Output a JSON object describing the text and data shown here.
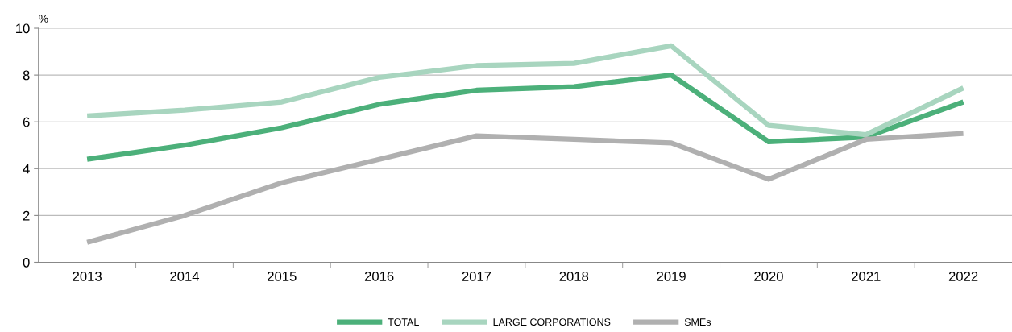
{
  "chart_data": {
    "type": "line",
    "ylabel": "%",
    "categories": [
      "2013",
      "2014",
      "2015",
      "2016",
      "2017",
      "2018",
      "2019",
      "2020",
      "2021",
      "2022"
    ],
    "series": [
      {
        "name": "TOTAL",
        "color": "#4cb07a",
        "values": [
          4.4,
          5.0,
          5.75,
          6.75,
          7.35,
          7.5,
          8.0,
          5.15,
          5.35,
          6.85
        ]
      },
      {
        "name": "LARGE CORPORATIONS",
        "color": "#a8d5bf",
        "values": [
          6.25,
          6.5,
          6.85,
          7.9,
          8.4,
          8.5,
          9.25,
          5.85,
          5.45,
          7.45
        ]
      },
      {
        "name": "SMEs",
        "color": "#b0b0b0",
        "values": [
          0.85,
          2.0,
          3.4,
          4.4,
          5.4,
          5.25,
          5.1,
          3.55,
          5.25,
          5.5
        ]
      }
    ],
    "ylim": [
      0,
      10
    ],
    "yticks": [
      0,
      2,
      4,
      6,
      8,
      10
    ],
    "grid": "y",
    "legend": "bottom",
    "marker": "none",
    "line_style": "solid"
  }
}
